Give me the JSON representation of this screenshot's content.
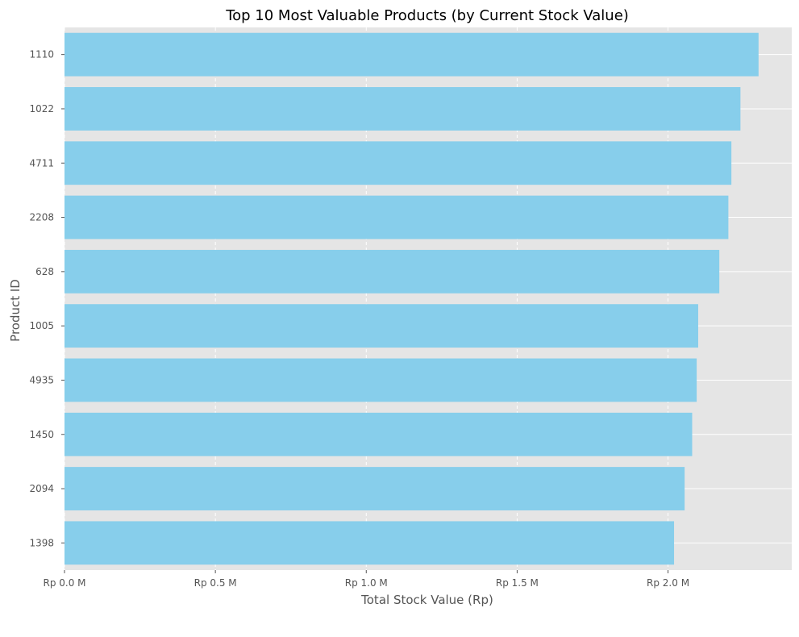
{
  "chart_data": {
    "type": "bar",
    "orientation": "horizontal",
    "title": "Top 10 Most Valuable Products (by Current Stock Value)",
    "xlabel": "Total Stock Value (Rp)",
    "ylabel": "Product ID",
    "categories": [
      "1110",
      "1022",
      "4711",
      "2208",
      "628",
      "1005",
      "4935",
      "1450",
      "2094",
      "1398"
    ],
    "values": [
      2300000,
      2240000,
      2210000,
      2200000,
      2170000,
      2100000,
      2095000,
      2080000,
      2055000,
      2020000
    ],
    "xlim": [
      0,
      2410000
    ],
    "xticks": [
      0,
      500000,
      1000000,
      1500000,
      2000000
    ],
    "xtick_labels": [
      "Rp 0.0 M",
      "Rp 0.5 M",
      "Rp 1.0 M",
      "Rp 1.5 M",
      "Rp 2.0 M"
    ],
    "grid": true,
    "bar_color": "#87CEEB",
    "background_color": "#E5E5E5",
    "grid_color": "#FFFFFF"
  }
}
